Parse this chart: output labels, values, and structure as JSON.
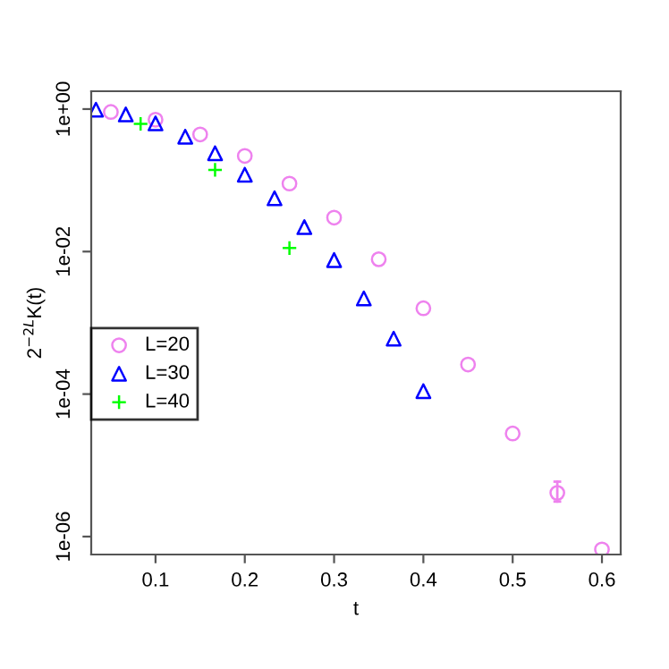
{
  "chart_data": {
    "type": "scatter",
    "xlabel": "t",
    "ylabel": "2$^{−2L}$K(t)",
    "log": "y",
    "grid": false,
    "legend": "left",
    "xlim": [
      0.028,
      0.621
    ],
    "ylim": [
      5.6e-07,
      1.78
    ],
    "xticks": [
      0.1,
      0.2,
      0.3,
      0.4,
      0.5,
      0.6
    ],
    "yticks": [
      {
        "value": 1,
        "label": "1e+00"
      },
      {
        "value": 0.01,
        "label": "1e-02"
      },
      {
        "value": 0.0001,
        "label": "1e-04"
      },
      {
        "value": 1e-06,
        "label": "1e-06"
      }
    ],
    "series": [
      {
        "name": "L=20",
        "color": "#ee82ee",
        "marker": "circle",
        "x": [
          0.05,
          0.1,
          0.15,
          0.2,
          0.25,
          0.3,
          0.35,
          0.4,
          0.45,
          0.5,
          0.55,
          0.6
        ],
        "values": [
          0.91,
          0.71,
          0.44,
          0.22,
          0.09,
          0.03,
          0.0078,
          0.0016,
          0.00026,
          2.8e-05,
          4.1e-06,
          6.6e-07
        ],
        "errors": [
          null,
          null,
          null,
          null,
          null,
          null,
          null,
          null,
          null,
          null,
          [
            3.1e-06,
            5.9e-06
          ],
          null
        ]
      },
      {
        "name": "L=30",
        "color": "#0000ff",
        "marker": "triangle",
        "x": [
          0.0333,
          0.0667,
          0.1,
          0.1333,
          0.1667,
          0.2,
          0.2333,
          0.2667,
          0.3,
          0.3333,
          0.3667,
          0.4
        ],
        "values": [
          0.98,
          0.84,
          0.63,
          0.41,
          0.24,
          0.12,
          0.056,
          0.022,
          0.0076,
          0.0022,
          0.0006,
          0.00011
        ]
      },
      {
        "name": "L=40",
        "color": "#00ff00",
        "marker": "cross",
        "x": [
          0.0833,
          0.1667,
          0.25
        ],
        "values": [
          0.62,
          0.14,
          0.0112
        ]
      }
    ]
  }
}
